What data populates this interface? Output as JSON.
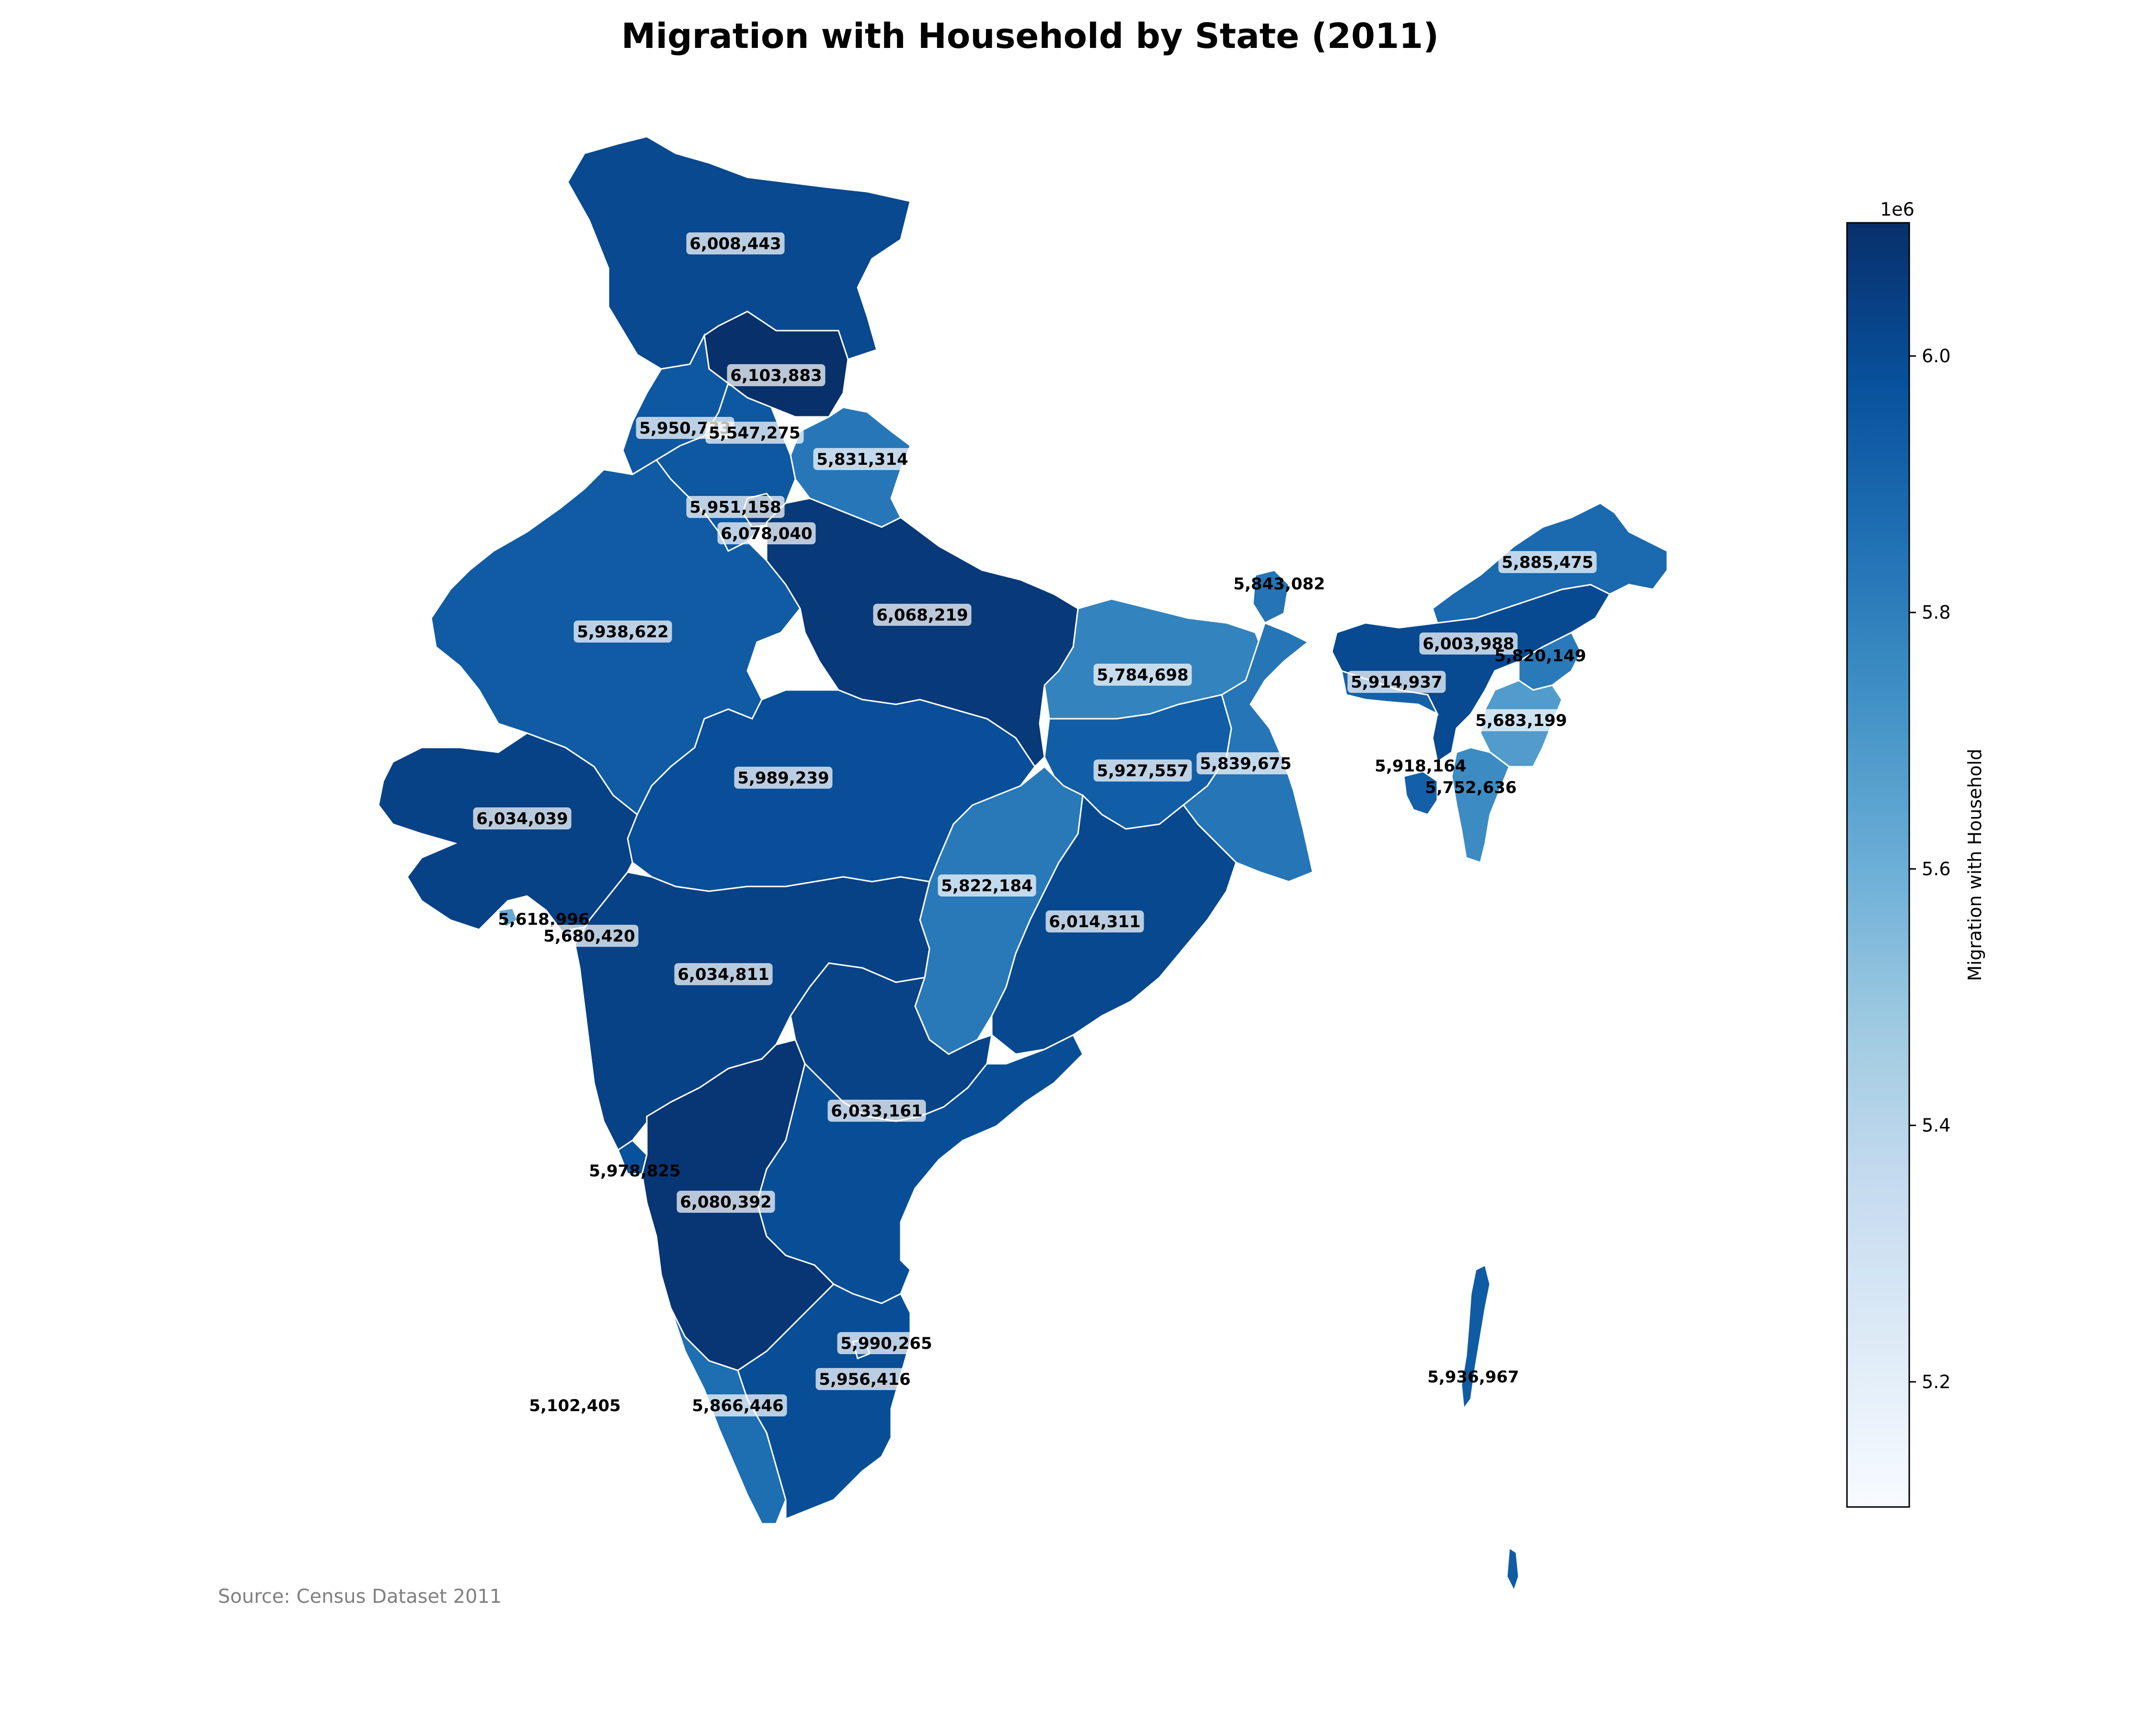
{
  "chart_data": {
    "type": "choropleth-map",
    "title": "Migration with Household by State (2011)",
    "source": "Source: Census Dataset 2011",
    "colorbar": {
      "label": "Migration with Household",
      "offset_text": "1e6",
      "range": [
        5102405,
        6103883
      ],
      "ticks": [
        5.2,
        5.4,
        5.6,
        5.8,
        6.0
      ],
      "colormap": "Blues",
      "colors": [
        "#f7fbff",
        "#deebf7",
        "#c6dbef",
        "#9ecae1",
        "#6baed6",
        "#4292c6",
        "#2171b5",
        "#08519c",
        "#08306b"
      ]
    },
    "regions": [
      {
        "id": "jk",
        "value": 6008443,
        "label": "6,008,443"
      },
      {
        "id": "hp",
        "value": 6103883,
        "label": "6,103,883"
      },
      {
        "id": "pb",
        "value": 5950733,
        "label": "5,950,733"
      },
      {
        "id": "ch",
        "value": 5547275,
        "label": "5,547,275"
      },
      {
        "id": "uk",
        "value": 5831314,
        "label": "5,831,314"
      },
      {
        "id": "hr",
        "value": 5951158,
        "label": "5,951,158"
      },
      {
        "id": "dl",
        "value": 6078040,
        "label": "6,078,040"
      },
      {
        "id": "rj",
        "value": 5938622,
        "label": "5,938,622"
      },
      {
        "id": "up",
        "value": 6068219,
        "label": "6,068,219"
      },
      {
        "id": "br",
        "value": 5784698,
        "label": "5,784,698"
      },
      {
        "id": "sk",
        "value": 5843082,
        "label": "5,843,082"
      },
      {
        "id": "ar",
        "value": 5885475,
        "label": "5,885,475"
      },
      {
        "id": "as",
        "value": 6003988,
        "label": "6,003,988"
      },
      {
        "id": "nl",
        "value": 5820149,
        "label": "5,820,149"
      },
      {
        "id": "ml",
        "value": 5914937,
        "label": "5,914,937"
      },
      {
        "id": "mn",
        "value": 5683199,
        "label": "5,683,199"
      },
      {
        "id": "tr",
        "value": 5918164,
        "label": "5,918,164"
      },
      {
        "id": "mz",
        "value": 5752636,
        "label": "5,752,636"
      },
      {
        "id": "jh",
        "value": 5927557,
        "label": "5,927,557"
      },
      {
        "id": "wb",
        "value": 5839675,
        "label": "5,839,675"
      },
      {
        "id": "gj",
        "value": 6034039,
        "label": "6,034,039"
      },
      {
        "id": "mp",
        "value": 5989239,
        "label": "5,989,239"
      },
      {
        "id": "cg",
        "value": 5822184,
        "label": "5,822,184"
      },
      {
        "id": "or",
        "value": 6014311,
        "label": "6,014,311"
      },
      {
        "id": "dd",
        "value": 5618996,
        "label": "5,618,996"
      },
      {
        "id": "dn",
        "value": 5680420,
        "label": "5,680,420"
      },
      {
        "id": "mh",
        "value": 6034811,
        "label": "6,034,811"
      },
      {
        "id": "tg",
        "value": 6033161,
        "label": "6,033,161"
      },
      {
        "id": "ga",
        "value": 5978825,
        "label": "5,978,825"
      },
      {
        "id": "ka",
        "value": 6080392,
        "label": "6,080,392"
      },
      {
        "id": "ap",
        "value": 5990265,
        "label": "5,990,265"
      },
      {
        "id": "py",
        "value": 5956416,
        "label": "5,956,416"
      },
      {
        "id": "kl",
        "value": 5866446,
        "label": "5,866,446"
      },
      {
        "id": "ld",
        "value": 5102405,
        "label": "5,102,405"
      },
      {
        "id": "an",
        "value": 5936967,
        "label": "5,936,967"
      }
    ]
  }
}
